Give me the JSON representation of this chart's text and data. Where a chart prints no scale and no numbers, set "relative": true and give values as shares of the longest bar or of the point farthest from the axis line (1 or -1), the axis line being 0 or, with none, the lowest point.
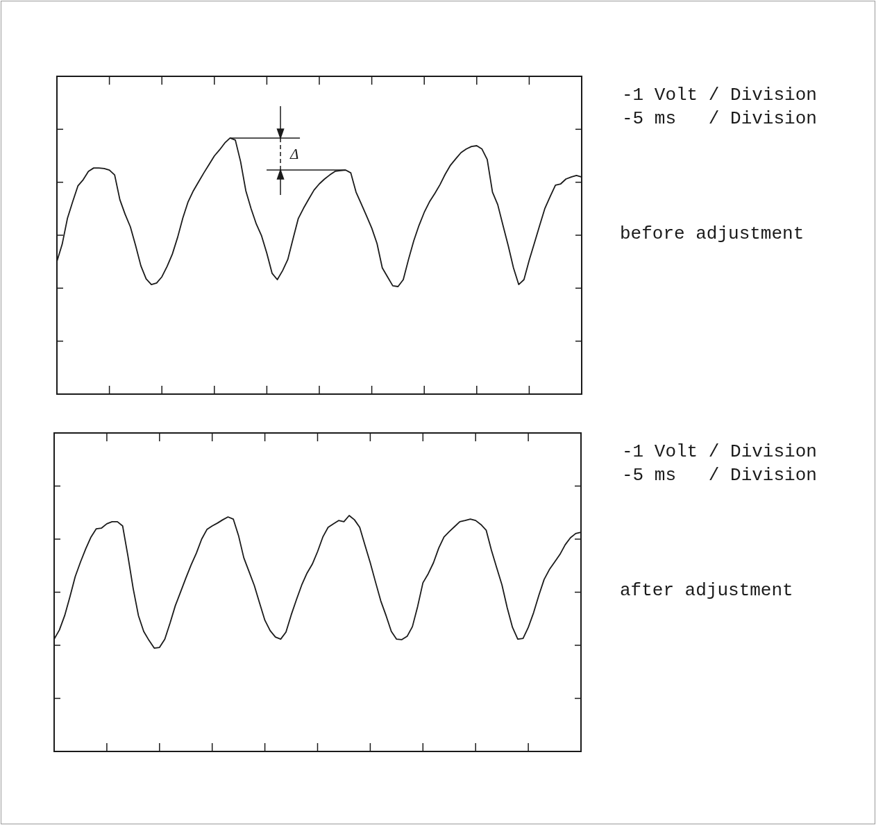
{
  "chart_data": [
    {
      "type": "line",
      "relative": true,
      "annotations": [
        "-1 Volt / Division",
        "-5 ms   / Division",
        "before adjustment",
        "Δ"
      ],
      "categories": [
        null,
        null,
        null,
        null,
        null,
        null,
        null,
        null,
        null,
        null,
        null,
        null,
        null,
        null,
        null,
        null,
        null,
        null,
        null,
        null,
        null,
        null,
        null,
        null,
        null,
        null,
        null,
        null,
        null,
        null,
        null,
        null,
        null,
        null,
        null,
        null,
        null,
        null,
        null,
        null,
        null,
        null,
        null,
        null,
        null,
        null,
        null,
        null,
        null,
        null,
        null,
        null,
        null,
        null,
        null,
        null,
        null,
        null,
        null,
        null,
        null,
        null,
        null,
        null,
        null,
        null,
        null,
        null,
        null,
        null,
        null,
        null,
        null,
        null,
        null,
        null,
        null,
        null,
        null,
        null,
        null,
        null,
        null,
        null,
        null,
        null,
        null,
        null,
        null,
        null,
        null,
        null,
        null,
        null,
        null,
        null,
        null,
        null,
        null,
        null,
        null
      ],
      "series": [
        {
          "color": "#1a1a1a",
          "values": [
            0.518,
            0.585,
            0.686,
            0.751,
            0.813,
            0.837,
            0.87,
            0.883,
            0.883,
            0.881,
            0.875,
            0.856,
            0.759,
            0.702,
            0.653,
            0.58,
            0.501,
            0.45,
            0.428,
            0.434,
            0.458,
            0.499,
            0.547,
            0.612,
            0.688,
            0.751,
            0.794,
            0.829,
            0.864,
            0.897,
            0.93,
            0.954,
            0.981,
            1,
            0.992,
            0.908,
            0.794,
            0.724,
            0.664,
            0.618,
            0.55,
            0.472,
            0.447,
            0.482,
            0.526,
            0.607,
            0.686,
            0.726,
            0.762,
            0.797,
            0.821,
            0.84,
            0.856,
            0.87,
            0.873,
            0.875,
            0.864,
            0.789,
            0.743,
            0.696,
            0.648,
            0.588,
            0.493,
            0.458,
            0.423,
            0.42,
            0.447,
            0.526,
            0.599,
            0.659,
            0.71,
            0.751,
            0.783,
            0.818,
            0.859,
            0.894,
            0.919,
            0.943,
            0.957,
            0.967,
            0.97,
            0.957,
            0.916,
            0.789,
            0.74,
            0.659,
            0.58,
            0.493,
            0.428,
            0.447,
            0.523,
            0.591,
            0.659,
            0.726,
            0.772,
            0.816,
            0.821,
            0.84,
            0.848,
            0.854,
            0.848
          ]
        }
      ]
    },
    {
      "type": "line",
      "relative": true,
      "annotations": [
        "-1 Volt / Division",
        "-5 ms   / Division",
        "after adjustment"
      ],
      "categories": [
        null,
        null,
        null,
        null,
        null,
        null,
        null,
        null,
        null,
        null,
        null,
        null,
        null,
        null,
        null,
        null,
        null,
        null,
        null,
        null,
        null,
        null,
        null,
        null,
        null,
        null,
        null,
        null,
        null,
        null,
        null,
        null,
        null,
        null,
        null,
        null,
        null,
        null,
        null,
        null,
        null,
        null,
        null,
        null,
        null,
        null,
        null,
        null,
        null,
        null,
        null,
        null,
        null,
        null,
        null,
        null,
        null,
        null,
        null,
        null,
        null,
        null,
        null,
        null,
        null,
        null,
        null,
        null,
        null,
        null,
        null,
        null,
        null,
        null,
        null,
        null,
        null,
        null,
        null,
        null,
        null,
        null,
        null,
        null,
        null,
        null,
        null,
        null,
        null,
        null,
        null,
        null,
        null,
        null,
        null,
        null,
        null,
        null,
        null,
        null,
        null
      ],
      "series": [
        {
          "color": "#1a1a1a",
          "values": [
            0.476,
            0.515,
            0.576,
            0.656,
            0.741,
            0.803,
            0.859,
            0.909,
            0.944,
            0.947,
            0.965,
            0.974,
            0.974,
            0.956,
            0.829,
            0.691,
            0.576,
            0.509,
            0.471,
            0.438,
            0.441,
            0.476,
            0.544,
            0.618,
            0.676,
            0.735,
            0.791,
            0.841,
            0.9,
            0.941,
            0.956,
            0.968,
            0.982,
            0.994,
            0.985,
            0.915,
            0.821,
            0.762,
            0.703,
            0.629,
            0.556,
            0.512,
            0.485,
            0.476,
            0.506,
            0.579,
            0.644,
            0.706,
            0.756,
            0.794,
            0.847,
            0.909,
            0.95,
            0.965,
            0.979,
            0.974,
            1,
            0.982,
            0.95,
            0.874,
            0.8,
            0.718,
            0.638,
            0.576,
            0.509,
            0.476,
            0.474,
            0.488,
            0.529,
            0.615,
            0.715,
            0.753,
            0.8,
            0.862,
            0.909,
            0.932,
            0.953,
            0.974,
            0.979,
            0.985,
            0.979,
            0.962,
            0.938,
            0.853,
            0.779,
            0.706,
            0.609,
            0.526,
            0.476,
            0.479,
            0.526,
            0.588,
            0.662,
            0.729,
            0.771,
            0.803,
            0.835,
            0.876,
            0.906,
            0.924,
            0.929
          ]
        }
      ]
    }
  ]
}
